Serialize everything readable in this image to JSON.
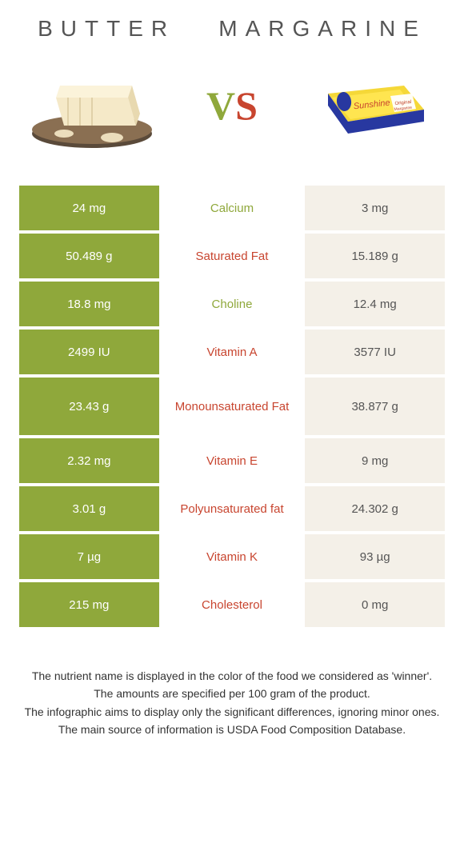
{
  "header": {
    "left_title": "BUTTER",
    "right_title": "MARGARINE",
    "vs_v": "V",
    "vs_s": "S"
  },
  "colors": {
    "left_bg": "#8fa83b",
    "right_bg": "#f4f0e8",
    "winner_left": "#8fa83b",
    "winner_right": "#c8452f",
    "page_bg": "#ffffff",
    "text": "#333333"
  },
  "table": {
    "rows": [
      {
        "left": "24 mg",
        "label": "Calcium",
        "right": "3 mg",
        "winner": "left",
        "tall": false
      },
      {
        "left": "50.489 g",
        "label": "Saturated Fat",
        "right": "15.189 g",
        "winner": "right",
        "tall": false
      },
      {
        "left": "18.8 mg",
        "label": "Choline",
        "right": "12.4 mg",
        "winner": "left",
        "tall": false
      },
      {
        "left": "2499 IU",
        "label": "Vitamin A",
        "right": "3577 IU",
        "winner": "right",
        "tall": false
      },
      {
        "left": "23.43 g",
        "label": "Monounsaturated Fat",
        "right": "38.877 g",
        "winner": "right",
        "tall": true
      },
      {
        "left": "2.32 mg",
        "label": "Vitamin E",
        "right": "9 mg",
        "winner": "right",
        "tall": false
      },
      {
        "left": "3.01 g",
        "label": "Polyunsaturated fat",
        "right": "24.302 g",
        "winner": "right",
        "tall": false
      },
      {
        "left": "7 µg",
        "label": "Vitamin K",
        "right": "93 µg",
        "winner": "right",
        "tall": false
      },
      {
        "left": "215 mg",
        "label": "Cholesterol",
        "right": "0 mg",
        "winner": "right",
        "tall": false
      }
    ]
  },
  "footer": {
    "line1": "The nutrient name is displayed in the color of the food we considered as 'winner'.",
    "line2": "The amounts are specified per 100 gram of the product.",
    "line3": "The infographic aims to display only the significant differences, ignoring minor ones.",
    "line4": "The main source of information is USDA Food Composition Database."
  }
}
